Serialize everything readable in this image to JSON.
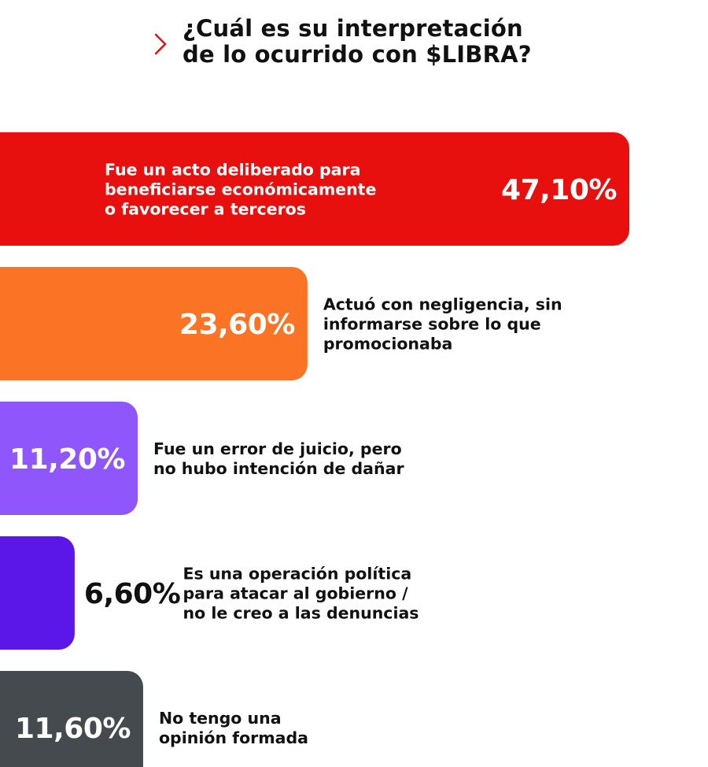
{
  "title": {
    "lines": [
      "¿Cuál es su interpretación",
      "de lo ocurrido con $LIBRA?"
    ]
  },
  "chart_data": {
    "type": "bar",
    "orientation": "horizontal",
    "title": "¿Cuál es su interpretación de lo ocurrido con $LIBRA?",
    "unit": "%",
    "xlim": [
      0,
      47.1
    ],
    "bars": [
      {
        "value": 47.1,
        "value_label": "47,10%",
        "color": "#e8100f",
        "label_lines": [
          "Fue un acto deliberado para",
          "beneficiarse económicamente",
          "o favorecer a terceros"
        ],
        "label_position": "inside"
      },
      {
        "value": 23.6,
        "value_label": "23,60%",
        "color": "#fb7324",
        "label_lines": [
          "Actuó con negligencia, sin",
          "informarse sobre lo que",
          "promocionaba"
        ],
        "label_position": "outside"
      },
      {
        "value": 11.2,
        "value_label": "11,20%",
        "color": "#8f56fb",
        "label_lines": [
          "Fue un error de juicio, pero",
          "no hubo intención de dañar"
        ],
        "label_position": "outside"
      },
      {
        "value": 6.6,
        "value_label": "6,60%",
        "color": "#5a17e8",
        "label_lines": [
          "Es una operación política",
          "para atacar al gobierno /",
          "no le creo a las denuncias"
        ],
        "label_position": "outside"
      },
      {
        "value": 11.6,
        "value_label": "11,60%",
        "color": "#454a4e",
        "label_lines": [
          "No tengo una",
          "opinión formada"
        ],
        "label_position": "outside"
      }
    ]
  },
  "colors": {
    "title": "#111111",
    "chevron": "#e8100f",
    "value_on_bar": "#ffffff",
    "value_off_bar": "#111111",
    "label_on_bar": "#ffffff",
    "label_off_bar": "#111111"
  },
  "icons": {
    "title_marker": "chevron-right-icon"
  }
}
